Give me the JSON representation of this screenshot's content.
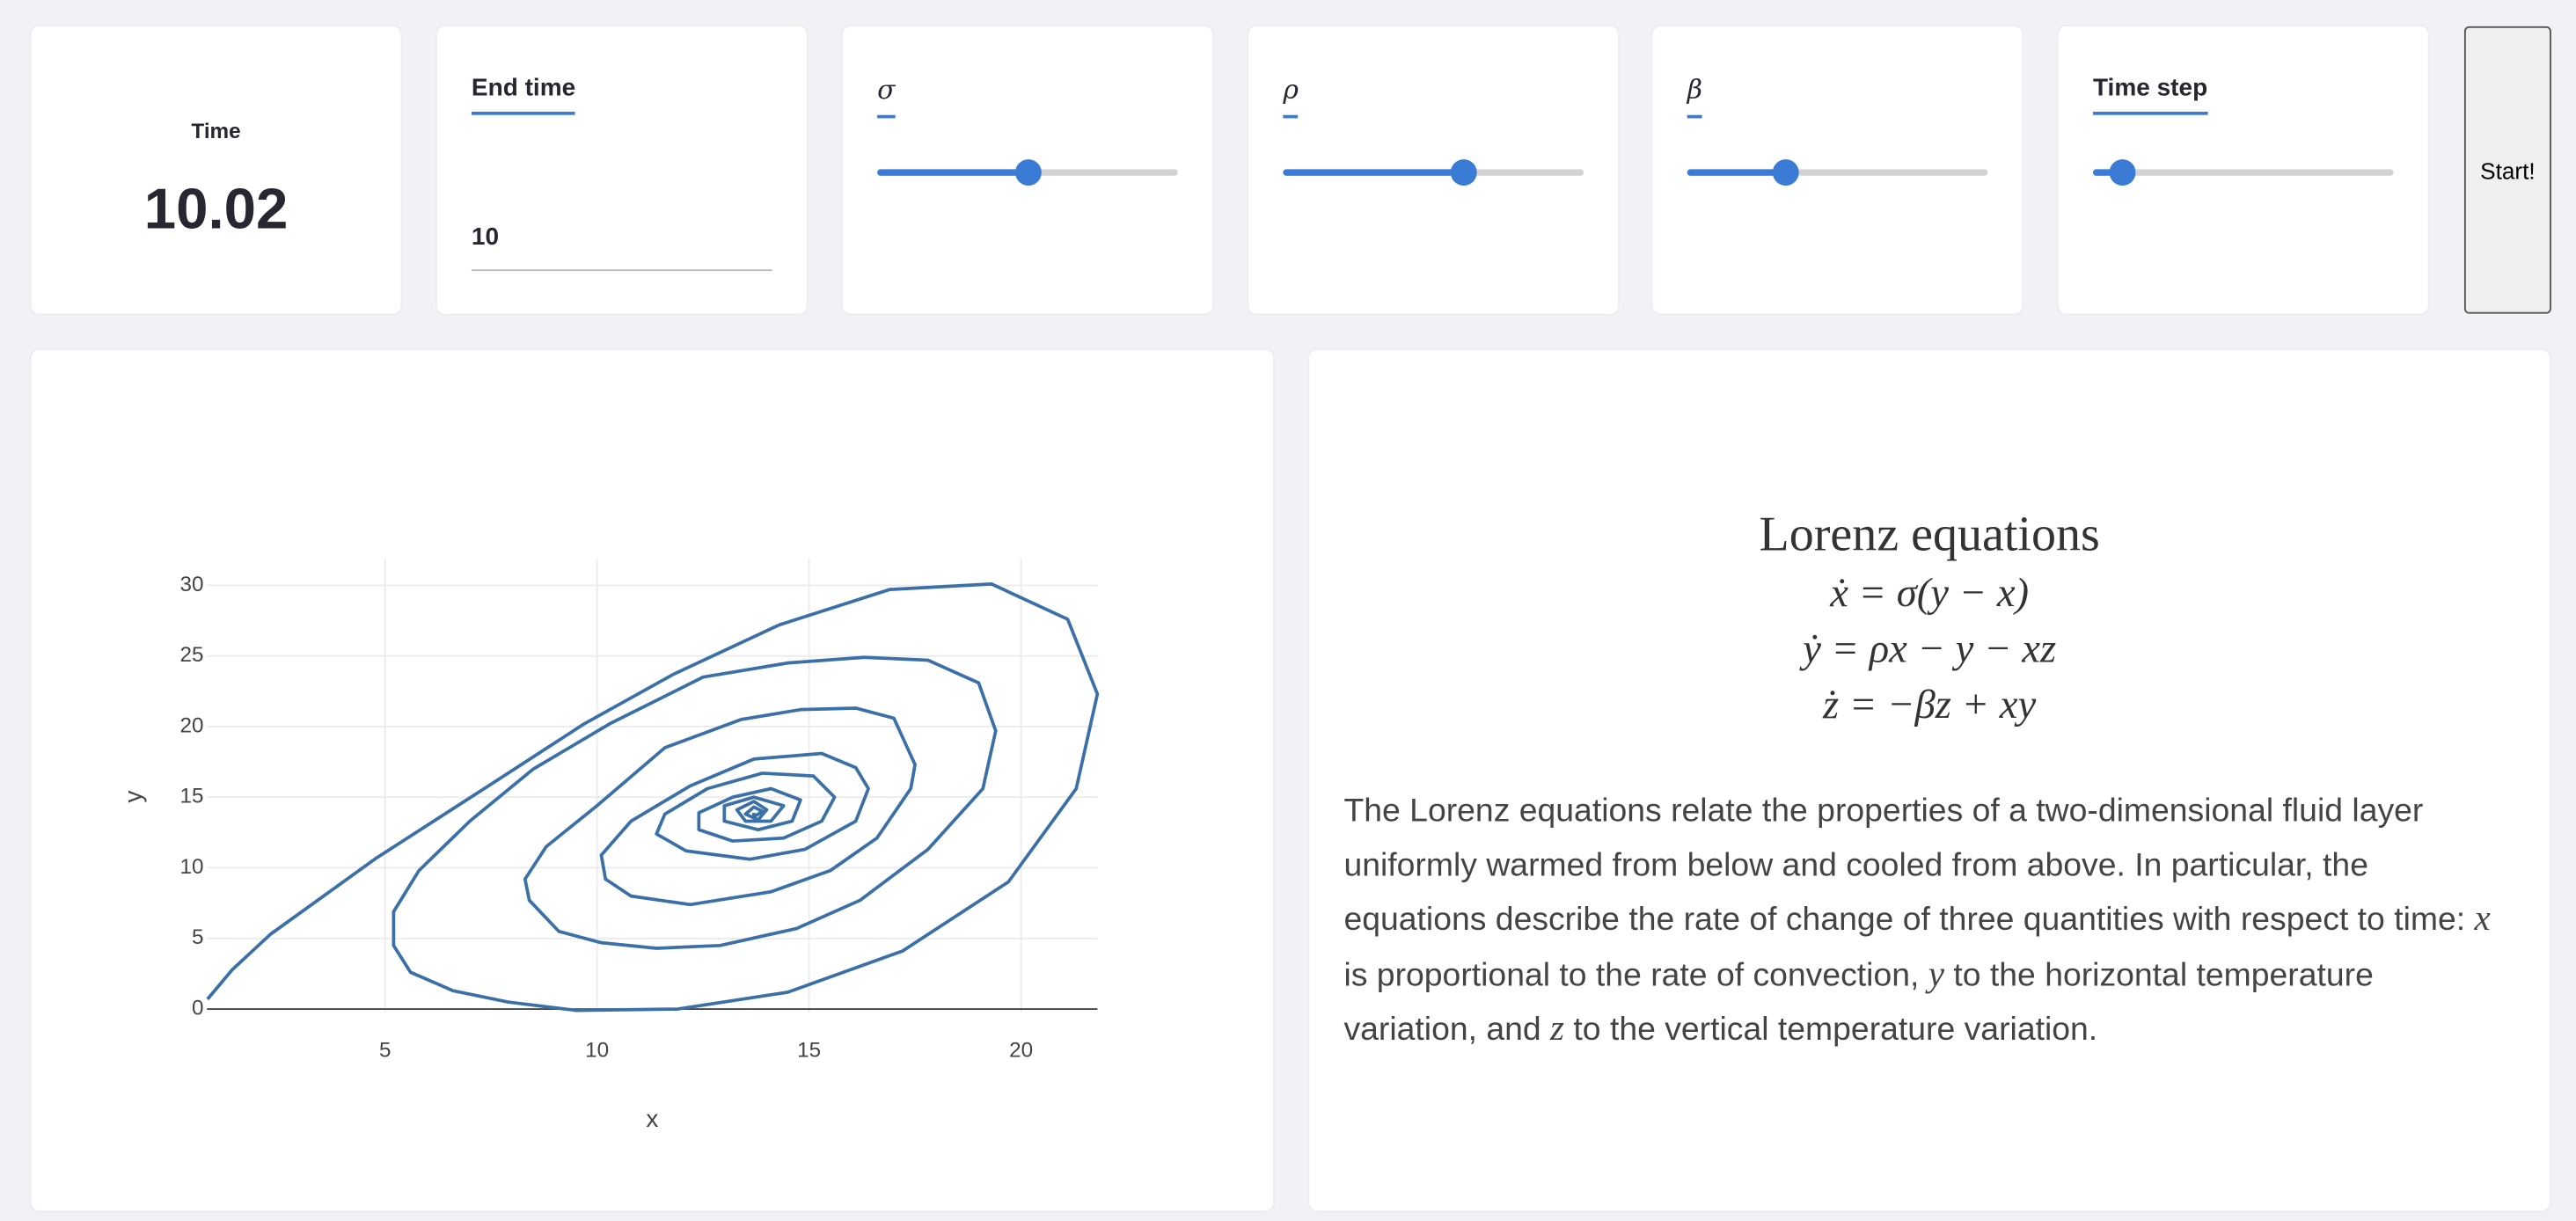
{
  "controls": {
    "time_label": "Time",
    "time_value": "10.02",
    "end_time_label": "End time",
    "end_time_value": "10",
    "sigma_label": "σ",
    "rho_label": "ρ",
    "beta_label": "β",
    "time_step_label": "Time step",
    "start_button": "Start!"
  },
  "equations": {
    "title": "Lorenz equations",
    "lines": [
      "ẋ = σ(y − x)",
      "ẏ = ρx − y − xz",
      "ż = −βz + xy"
    ],
    "paragraph": [
      "The Lorenz equations relate the properties of a two-dimensional fluid layer uniformly warmed from below and cooled from above. In particular, the equations describe the rate of change of three quantities with respect to time: ",
      "x",
      " is proportional to the rate of convection, ",
      "y",
      " to the horizontal temperature variation, and ",
      "z",
      " to the vertical temperature variation."
    ]
  },
  "chart_data": {
    "type": "line",
    "x_label": "x",
    "y_label": "y",
    "color": "#3b6fa8",
    "grid": true,
    "xlim": [
      0.8,
      21.8
    ],
    "ylim": [
      -0.2,
      31.9
    ],
    "xticks": [
      5,
      10,
      15,
      20
    ],
    "yticks": [
      0,
      5,
      10,
      15,
      20,
      25,
      30
    ],
    "x": [
      0.81,
      1.4,
      2.3,
      4.8,
      7.8,
      9.7,
      11.8,
      14.3,
      16.9,
      19.3,
      21.1,
      21.8,
      21.3,
      19.7,
      17.2,
      14.5,
      11.9,
      9.5,
      7.9,
      6.6,
      5.6,
      5.2,
      5.2,
      5.8,
      7.0,
      8.5,
      10.3,
      12.5,
      14.5,
      16.3,
      17.8,
      19.0,
      19.4,
      19.1,
      17.8,
      16.2,
      14.7,
      12.9,
      11.4,
      10.1,
      9.1,
      8.4,
      8.3,
      8.8,
      10.0,
      11.6,
      13.4,
      14.8,
      16.1,
      17.0,
      17.5,
      17.4,
      16.6,
      15.5,
      14.1,
      12.2,
      10.8,
      10.2,
      10.1,
      10.8,
      12.2,
      13.7,
      15.3,
      16.1,
      16.4,
      16.1,
      14.9,
      13.6,
      12.1,
      11.4,
      11.6,
      12.6,
      13.9,
      15.1,
      15.6,
      15.3,
      14.4,
      13.2,
      12.4,
      12.4,
      13.2,
      14.1,
      14.8,
      14.6,
      13.8,
      13.0,
      13.0,
      13.7,
      14.4,
      14.1,
      13.5,
      13.3,
      13.7,
      14.0,
      13.8,
      13.5,
      13.7,
      13.9,
      13.7,
      13.7
    ],
    "y": [
      0.7,
      2.8,
      5.3,
      10.7,
      16.5,
      20.2,
      23.7,
      27.2,
      29.7,
      30.1,
      27.6,
      22.3,
      15.6,
      9.0,
      4.1,
      1.2,
      0,
      -0.1,
      0.5,
      1.3,
      2.6,
      4.5,
      6.9,
      9.8,
      13.3,
      17.0,
      20.2,
      23.5,
      24.5,
      24.9,
      24.7,
      23.1,
      19.7,
      15.6,
      11.3,
      7.7,
      5.7,
      4.5,
      4.3,
      4.7,
      5.5,
      7.7,
      9.2,
      11.5,
      14.4,
      18.5,
      20.5,
      21.2,
      21.3,
      20.6,
      17.3,
      15.6,
      12.1,
      9.8,
      8.3,
      7.4,
      8.0,
      9.2,
      10.9,
      13.3,
      15.8,
      17.7,
      18.1,
      17.1,
      15.6,
      13.3,
      11.3,
      10.6,
      11.2,
      12.4,
      13.8,
      15.6,
      16.7,
      16.5,
      15.0,
      13.3,
      12.1,
      11.9,
      12.7,
      13.9,
      15.0,
      15.6,
      14.8,
      13.3,
      12.7,
      13.3,
      14.4,
      15.0,
      14.4,
      13.3,
      13.3,
      14.1,
      14.7,
      14.1,
      13.4,
      13.8,
      14.3,
      14.0,
      13.6,
      13.9
    ]
  }
}
